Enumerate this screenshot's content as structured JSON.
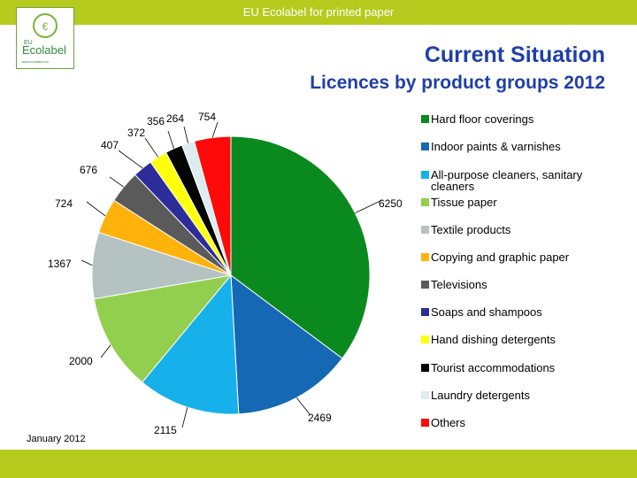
{
  "header": {
    "banner_title": "EU Ecolabel for printed paper"
  },
  "logo": {
    "text": "Ecolabel",
    "eu": "EU",
    "url": "www.ecolabel.eu"
  },
  "slide": {
    "title": "Current Situation",
    "subtitle": "Licences by product groups 2012",
    "date": "January 2012"
  },
  "colors": {
    "banner": "#b5cb1e",
    "title": "#1f3fa8"
  },
  "chart_data": {
    "type": "pie",
    "categories": [
      "Hard floor coverings",
      "Indoor paints & varnishes",
      "All-purpose cleaners, sanitary cleaners",
      "Tissue paper",
      "Textile products",
      "Copying and graphic paper",
      "Televisions",
      "Soaps and shampoos",
      "Hand dishing detergents",
      "Tourist accommodations",
      "Laundry detergents",
      "Others"
    ],
    "values": [
      6250,
      2469,
      2115,
      2000,
      1367,
      724,
      676,
      407,
      372,
      356,
      264,
      754
    ],
    "colors": [
      "#0a8a1e",
      "#1568b4",
      "#16b0ea",
      "#93cf4e",
      "#b4c2c2",
      "#ffb20a",
      "#5a5a5a",
      "#2d2d9a",
      "#ffff0a",
      "#050505",
      "#dcecf0",
      "#ff0a0a"
    ],
    "legend_position": "right",
    "start_angle_deg": 0
  }
}
